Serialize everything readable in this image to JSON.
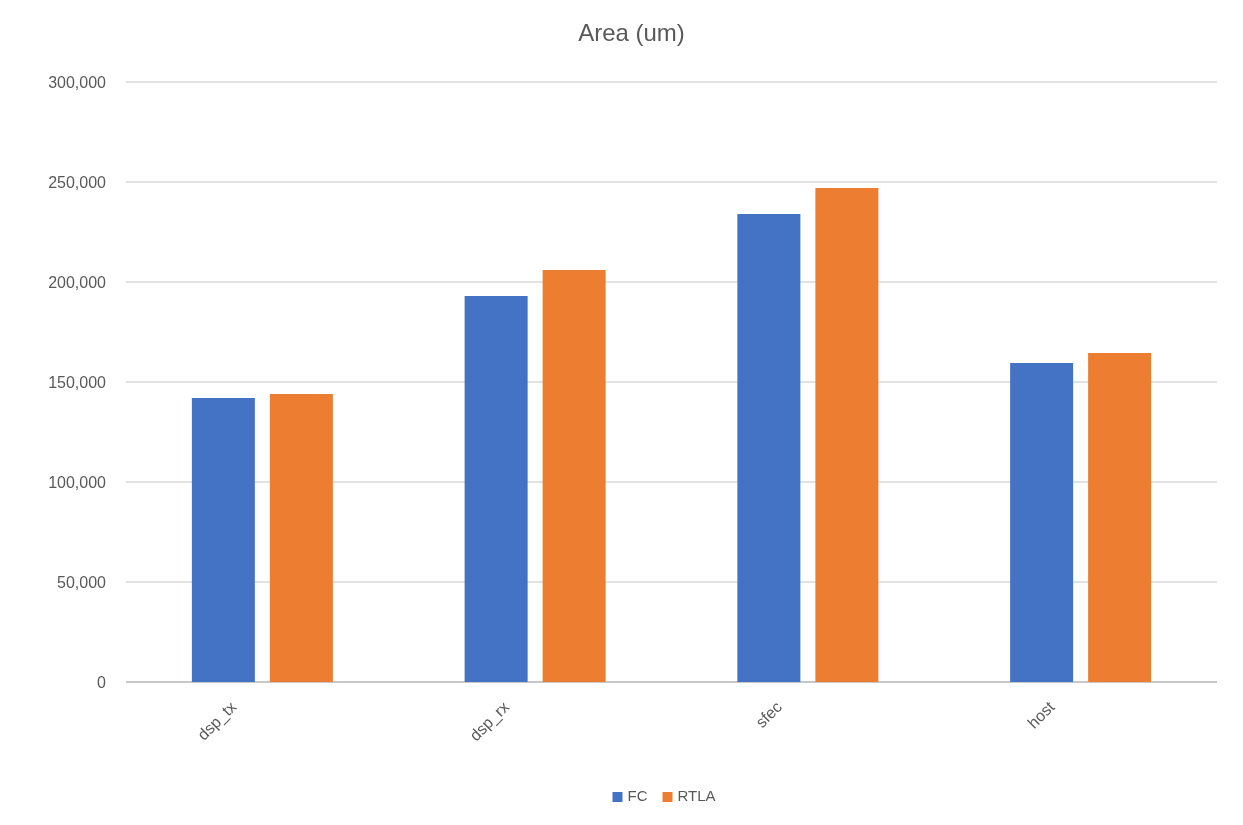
{
  "chart_data": {
    "type": "bar",
    "title": "Area (um)",
    "categories": [
      "dsp_tx",
      "dsp_rx",
      "sfec",
      "host"
    ],
    "series": [
      {
        "name": "FC",
        "color": "#4472c4",
        "values": [
          142000,
          193000,
          234000,
          159500
        ]
      },
      {
        "name": "RTLA",
        "color": "#ed7d31",
        "values": [
          144000,
          206000,
          247000,
          164500
        ]
      }
    ],
    "ylim": [
      0,
      300000
    ],
    "yticks": [
      {
        "value": 0,
        "label": "0"
      },
      {
        "value": 50000,
        "label": "50,000"
      },
      {
        "value": 100000,
        "label": "100,000"
      },
      {
        "value": 150000,
        "label": "150,000"
      },
      {
        "value": 200000,
        "label": "200,000"
      },
      {
        "value": 250000,
        "label": "250,000"
      },
      {
        "value": 300000,
        "label": "300,000"
      }
    ],
    "grid": "y",
    "legend": "bottom"
  }
}
